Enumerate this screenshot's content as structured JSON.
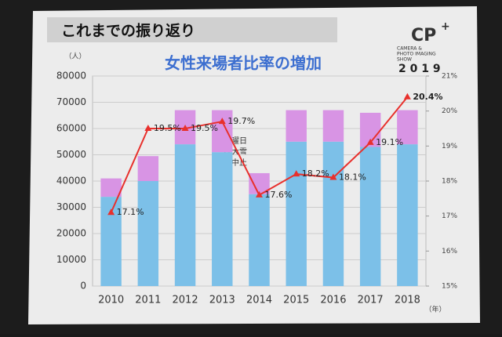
{
  "slide": {
    "header": "これまでの振り返り",
    "logo": "CP",
    "logo_plus": "+",
    "logo_lines": [
      "CAMERA &",
      "PHOTO IMAGING",
      "SHOW"
    ],
    "logo_year": "2 0 1 9"
  },
  "chart_data": {
    "type": "bar",
    "stacked": true,
    "title": "女性来場者比率の増加",
    "y_unit": "（人）",
    "x_unit": "（年）",
    "annotation": [
      "土曜日",
      "は大雪",
      "で中止"
    ],
    "categories": [
      "2010",
      "2011",
      "2012",
      "2013",
      "2014",
      "2015",
      "2016",
      "2017",
      "2018"
    ],
    "series": [
      {
        "type": "bar",
        "color": "#7cc0e8",
        "values": [
          34000,
          40000,
          54000,
          51000,
          35000,
          55000,
          55000,
          53000,
          54000
        ]
      },
      {
        "type": "bar",
        "color": "#d894e4",
        "values": [
          7000,
          9500,
          13000,
          16000,
          8000,
          12000,
          12000,
          13000,
          13000
        ]
      },
      {
        "type": "line",
        "axis": "y2",
        "color": "#e8302c",
        "values": [
          17.1,
          19.5,
          19.5,
          19.7,
          17.6,
          18.2,
          18.1,
          19.1,
          20.4
        ],
        "value_labels": [
          "17.1%",
          "19.5%",
          "19.5%",
          "19.7%",
          "17.6%",
          "18.2%",
          "18.1%",
          "19.1%",
          "20.4%"
        ]
      }
    ],
    "ylim": [
      0,
      80000
    ],
    "yticks": [
      0,
      10000,
      20000,
      30000,
      40000,
      50000,
      60000,
      70000,
      80000
    ],
    "y2lim": [
      15,
      21
    ],
    "y2ticks": [
      {
        "value": 15,
        "label": "15%"
      },
      {
        "value": 16,
        "label": "16%"
      },
      {
        "value": 17,
        "label": "17%"
      },
      {
        "value": 18,
        "label": "18%"
      },
      {
        "value": 19,
        "label": "19%"
      },
      {
        "value": 20,
        "label": "20%"
      },
      {
        "value": 21,
        "label": "21%"
      }
    ],
    "grid": true
  }
}
